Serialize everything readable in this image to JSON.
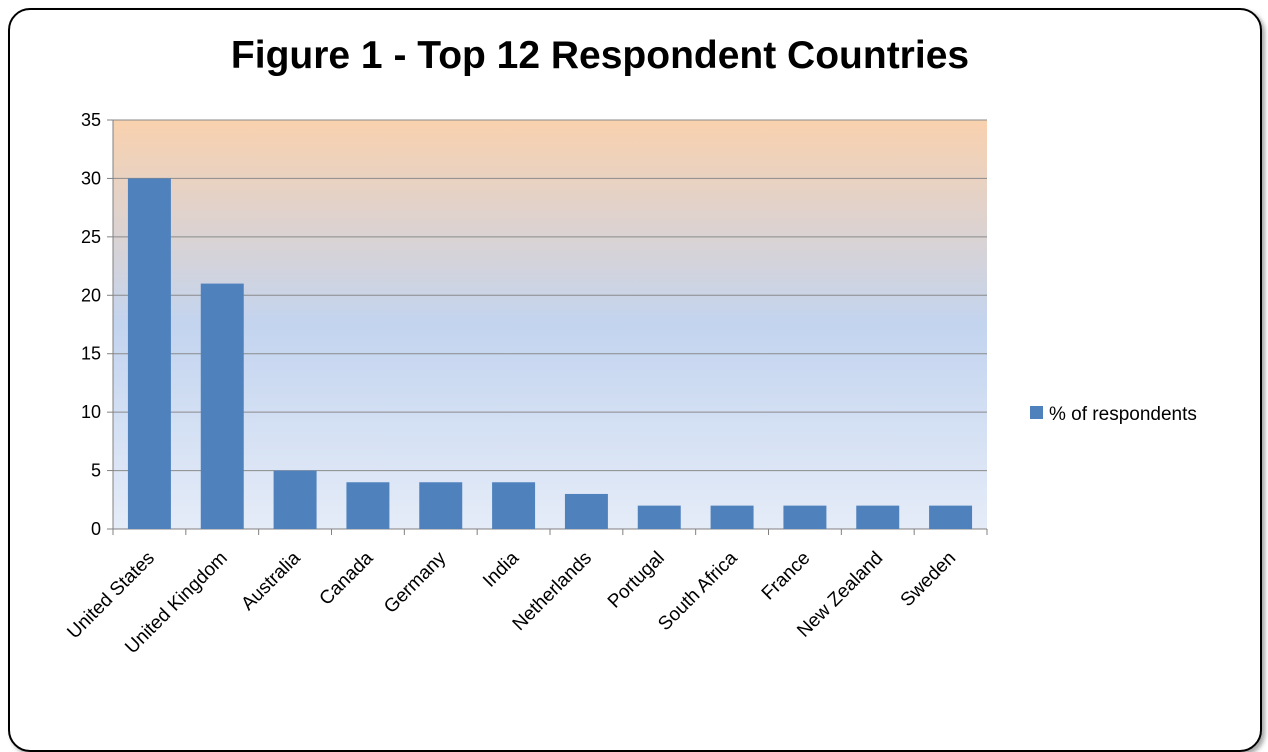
{
  "chart_data": {
    "type": "bar",
    "title": "Figure 1 - Top 12 Respondent Countries",
    "categories": [
      "United States",
      "United Kingdom",
      "Australia",
      "Canada",
      "Germany",
      "India",
      "Netherlands",
      "Portugal",
      "South Africa",
      "France",
      "New Zealand",
      "Sweden"
    ],
    "series": [
      {
        "name": "% of respondents",
        "values": [
          30,
          21,
          5,
          4,
          4,
          4,
          3,
          2,
          2,
          2,
          2,
          2
        ],
        "color": "#4F81BD"
      }
    ],
    "ylim": [
      0,
      35
    ],
    "yticks": [
      0,
      5,
      10,
      15,
      20,
      25,
      30,
      35
    ],
    "grid": true,
    "legend_position": "right",
    "background_gradient": [
      "#F9D1AE",
      "#C3D4EF",
      "#E5ECF8"
    ]
  }
}
